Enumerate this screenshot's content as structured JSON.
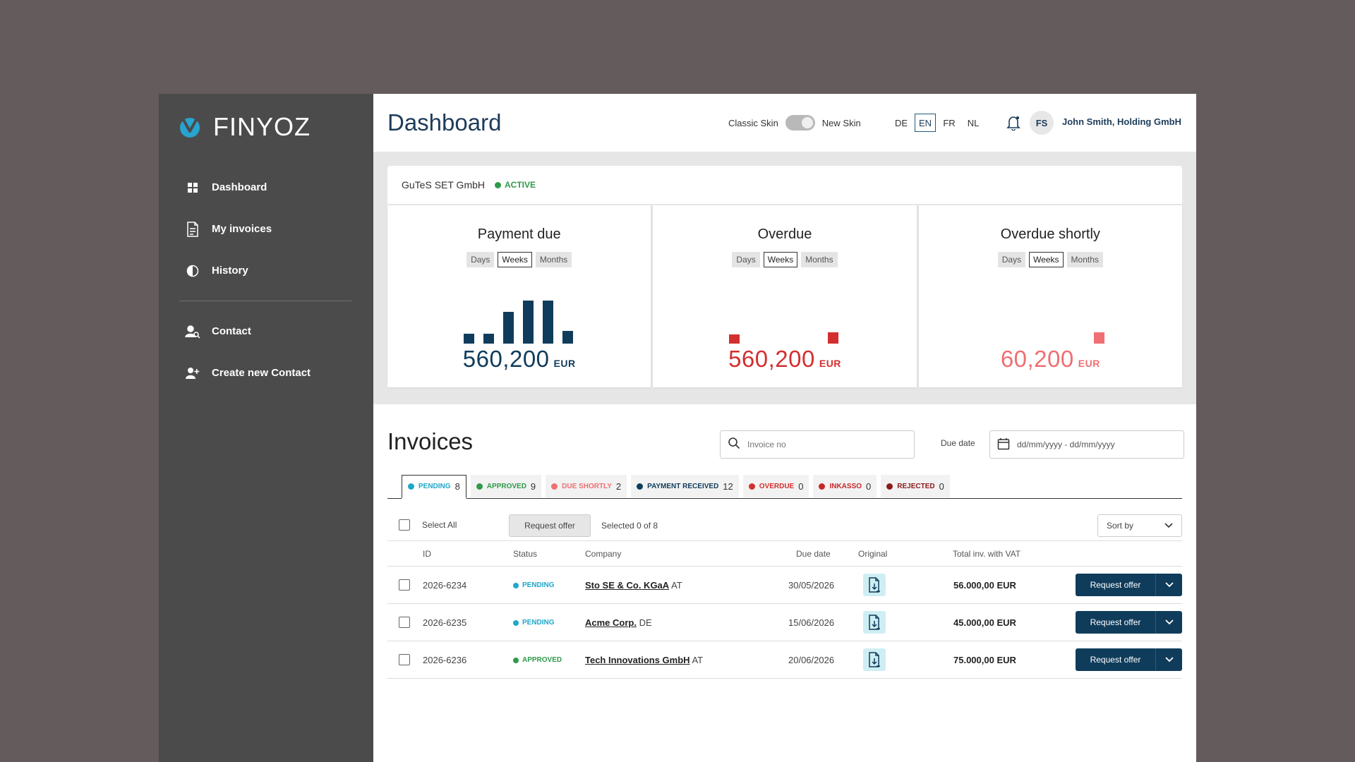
{
  "brand": {
    "name": "FINYOZ",
    "accent": "#29a3cf"
  },
  "sidebar": {
    "items": [
      {
        "label": "Dashboard",
        "icon": "grid-icon"
      },
      {
        "label": "My invoices",
        "icon": "document-icon"
      },
      {
        "label": "History",
        "icon": "half-circle-icon"
      },
      {
        "label": "Contact",
        "icon": "contact-search-icon"
      },
      {
        "label": "Create new Contact",
        "icon": "add-user-icon"
      }
    ]
  },
  "header": {
    "title": "Dashboard",
    "skin_left": "Classic Skin",
    "skin_right": "New Skin",
    "languages": [
      "DE",
      "EN",
      "FR",
      "NL"
    ],
    "active_language": "EN",
    "avatar_initials": "FS",
    "user": "John Smith,  Holding GmbH"
  },
  "company": {
    "name": "GuTeS SET GmbH",
    "status": "ACTIVE",
    "status_color": "#2f9a4a"
  },
  "kpis": [
    {
      "title": "Payment due",
      "periods": [
        "Days",
        "Weeks",
        "Months"
      ],
      "selected": "Weeks",
      "value": "560,200",
      "unit": "EUR",
      "color": "#103c5b",
      "bars": [
        0.2,
        0.2,
        0.63,
        0.85,
        0.85,
        0.25
      ]
    },
    {
      "title": "Overdue",
      "periods": [
        "Days",
        "Weeks",
        "Months"
      ],
      "selected": "Weeks",
      "value": "560,200",
      "unit": "EUR",
      "color": "#d32f2f",
      "bars": [
        0.18,
        0,
        0,
        0,
        0,
        0.22
      ]
    },
    {
      "title": "Overdue shortly",
      "periods": [
        "Days",
        "Weeks",
        "Months"
      ],
      "selected": "Weeks",
      "value": "60,200",
      "unit": "EUR",
      "color": "#ef6f72",
      "bars": [
        0,
        0,
        0,
        0,
        0,
        0.22
      ]
    }
  ],
  "invoices": {
    "title": "Invoices",
    "search_placeholder": "Invoice no",
    "due_label": "Due date",
    "date_placeholder": "dd/mm/yyyy  -  dd/mm/yyyy",
    "tabs": [
      {
        "label": "PENDING",
        "count": "8",
        "color": "#1fa7c9"
      },
      {
        "label": "APPROVED",
        "count": "9",
        "color": "#2f9a4a"
      },
      {
        "label": "DUE SHORTLY",
        "count": "2",
        "color": "#ef6f72"
      },
      {
        "label": "PAYMENT RECEIVED",
        "count": "12",
        "color": "#103c5b"
      },
      {
        "label": "OVERDUE",
        "count": "0",
        "color": "#d32f2f"
      },
      {
        "label": "INKASSO",
        "count": "0",
        "color": "#c62828"
      },
      {
        "label": "REJECTED",
        "count": "0",
        "color": "#8b1a1a"
      }
    ],
    "select_all": "Select All",
    "request_offer": "Request offer",
    "selected_text": "Selected 0 of 8",
    "sort_by": "Sort by",
    "columns": [
      "ID",
      "Status",
      "Company",
      "Due date",
      "Original",
      "Total inv. with VAT"
    ],
    "rows": [
      {
        "id": "2026-6234",
        "status": "PENDING",
        "status_color": "#1fa7c9",
        "company": "Sto SE & Co. KGaA",
        "country": "AT",
        "due": "30/05/2026",
        "amount": "56.000,00 EUR"
      },
      {
        "id": "2026-6235",
        "status": "PENDING",
        "status_color": "#1fa7c9",
        "company": "Acme Corp.",
        "country": "DE",
        "due": "15/06/2026",
        "amount": "45.000,00 EUR"
      },
      {
        "id": "2026-6236",
        "status": "APPROVED",
        "status_color": "#2f9a4a",
        "company": "Tech Innovations GmbH",
        "country": "AT",
        "due": "20/06/2026",
        "amount": "75.000,00 EUR"
      }
    ],
    "row_button": "Request offer"
  }
}
